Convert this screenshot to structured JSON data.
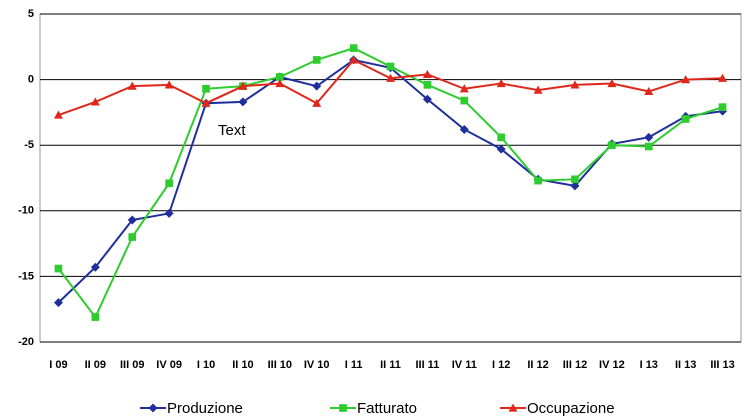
{
  "chart_data": {
    "type": "line",
    "categories": [
      "I 09",
      "II 09",
      "III 09",
      "IV 09",
      "I 10",
      "II 10",
      "III 10",
      "IV 10",
      "I 11",
      "II 11",
      "III 11",
      "IV 11",
      "I 12",
      "II 12",
      "III 12",
      "IV 12",
      "I 13",
      "II 13",
      "III 13"
    ],
    "series": [
      {
        "name": "Produzione",
        "color": "#1f2f9b",
        "marker": "diamond",
        "values": [
          -17.0,
          -14.3,
          -10.7,
          -10.2,
          -1.8,
          -1.7,
          0.2,
          -0.5,
          1.5,
          0.9,
          -1.5,
          -3.8,
          -5.3,
          -7.6,
          -8.1,
          -4.9,
          -4.4,
          -2.8,
          -2.4
        ]
      },
      {
        "name": "Fatturato",
        "color": "#2ecc2e",
        "marker": "square",
        "values": [
          -14.4,
          -18.1,
          -12.0,
          -7.9,
          -0.7,
          -0.5,
          0.2,
          1.5,
          2.4,
          1.0,
          -0.4,
          -1.6,
          -4.4,
          -7.7,
          -7.6,
          -5.0,
          -5.1,
          -3.0,
          -2.1
        ]
      },
      {
        "name": "Occupazione",
        "color": "#e0271b",
        "marker": "triangle",
        "values": [
          -2.7,
          -1.7,
          -0.5,
          -0.4,
          -1.8,
          -0.5,
          -0.3,
          -1.8,
          1.5,
          0.1,
          0.4,
          -0.7,
          -0.3,
          -0.8,
          -0.4,
          -0.3,
          -0.9,
          0.0,
          0.1
        ]
      }
    ],
    "ylim": [
      -20,
      5
    ],
    "yticks": [
      5,
      0,
      -5,
      -10,
      -15,
      -20
    ],
    "grid": true,
    "annotation": "Text",
    "legend": "bottom"
  }
}
